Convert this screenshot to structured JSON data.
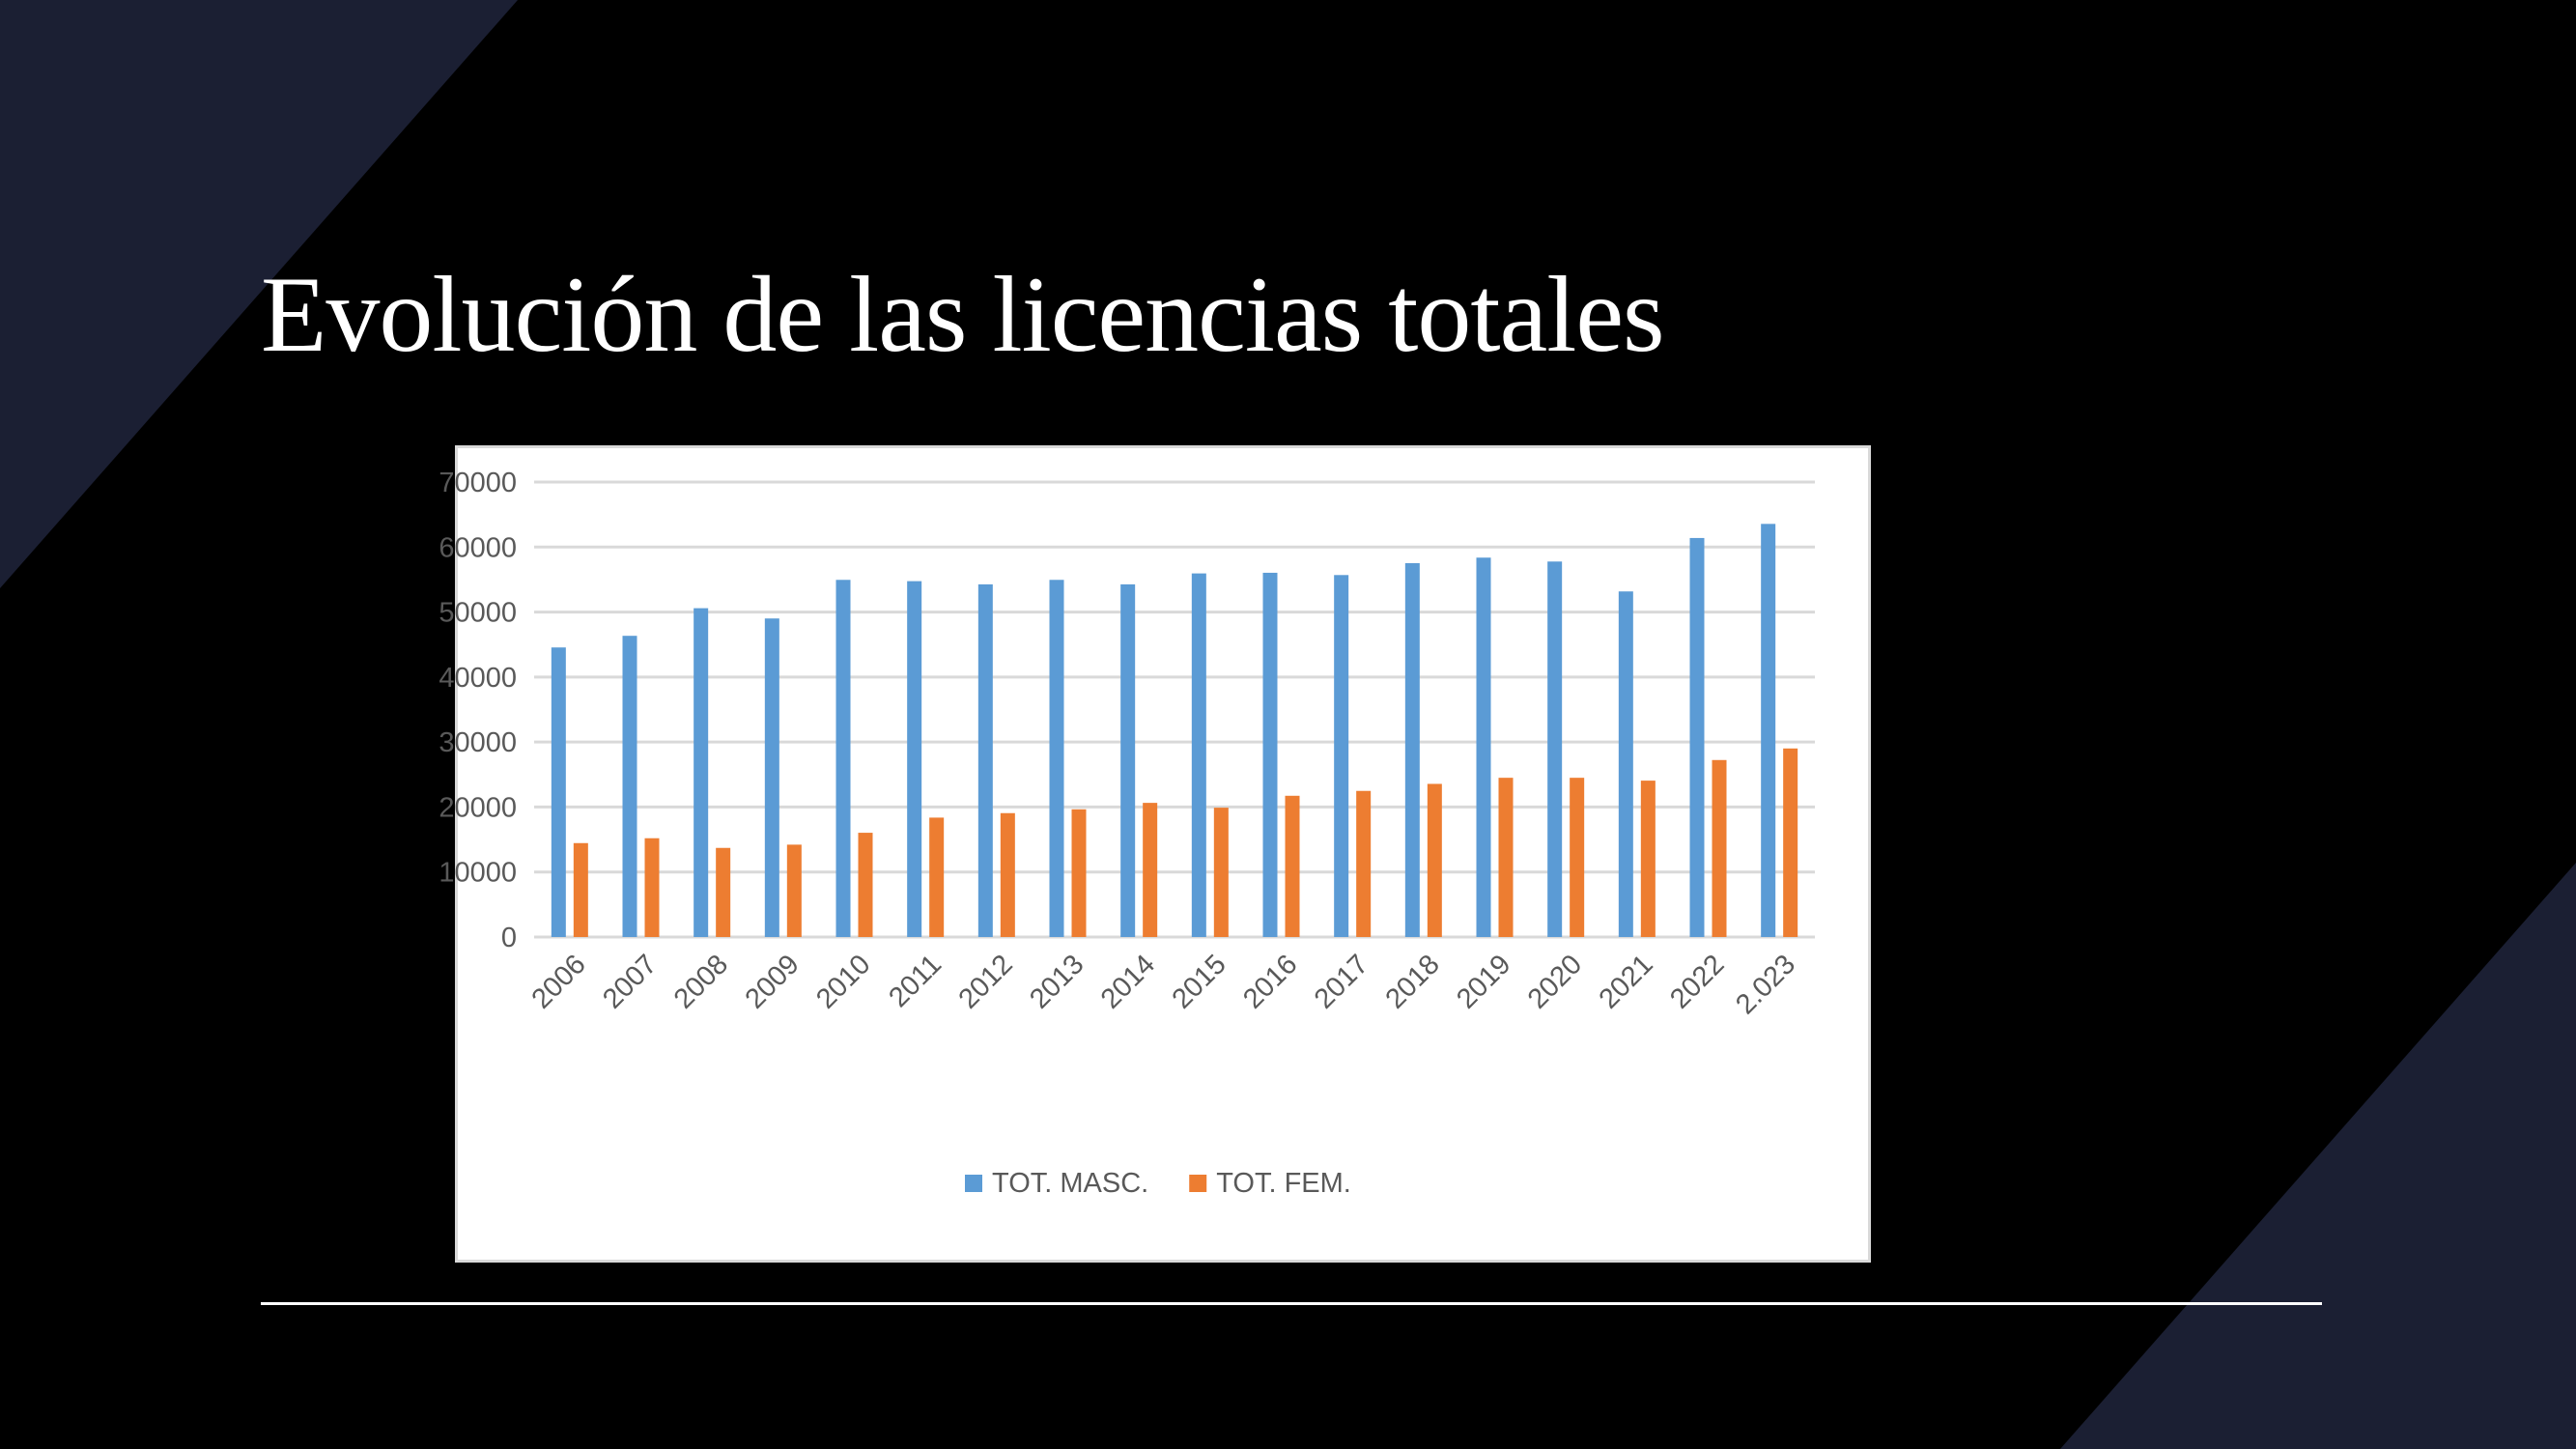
{
  "slide": {
    "title": "Evolución de las licencias totales",
    "background_color": "#000000",
    "accent_shape_color": "#1b1f33"
  },
  "chart_data": {
    "type": "bar",
    "title": "",
    "xlabel": "",
    "ylabel": "",
    "ylim": [
      0,
      70000
    ],
    "yticks": [
      "0",
      "10000",
      "20000",
      "30000",
      "40000",
      "50000",
      "60000",
      "70000"
    ],
    "grid": true,
    "legend_position": "bottom",
    "categories": [
      "2006",
      "2007",
      "2008",
      "2009",
      "2010",
      "2011",
      "2012",
      "2013",
      "2014",
      "2015",
      "2016",
      "2017",
      "2018",
      "2019",
      "2020",
      "2021",
      "2022",
      "2.023"
    ],
    "series": [
      {
        "name": "TOT. MASC.",
        "color": "#5b9bd5",
        "values": [
          44550,
          46340,
          50590,
          49010,
          54950,
          54750,
          54260,
          54950,
          54260,
          55940,
          56040,
          55690,
          57520,
          58370,
          57770,
          53170,
          61390,
          63560
        ]
      },
      {
        "name": "TOT. FEM.",
        "color": "#ed7d31",
        "values": [
          14450,
          15200,
          13710,
          14210,
          16040,
          18370,
          19060,
          19650,
          20640,
          19900,
          21730,
          22480,
          23560,
          24500,
          24500,
          24060,
          27230,
          29010
        ]
      }
    ]
  }
}
